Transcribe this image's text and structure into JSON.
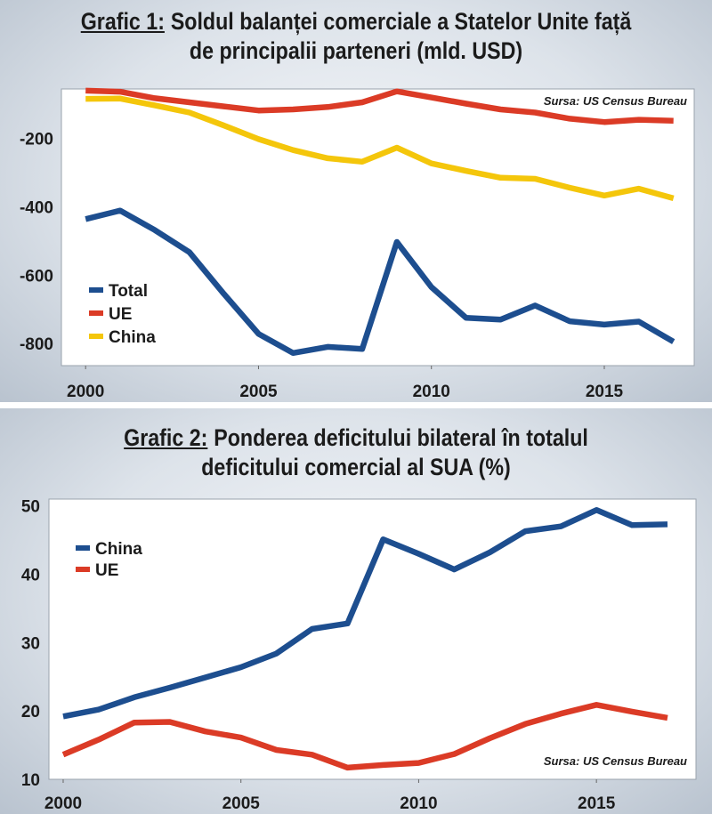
{
  "chart_data": [
    {
      "type": "line",
      "title_prefix": "Grafic 1:",
      "title": "Soldul balanței comerciale a Statelor Unite față de principalii parteneri (mld. USD)",
      "title_lines": [
        "Soldul balanței comerciale a Statelor Unite față",
        "de principalii parteneri (mld. USD)"
      ],
      "source": "Sursa: US Census Bureau",
      "x": [
        2000,
        2001,
        2002,
        2003,
        2004,
        2005,
        2006,
        2007,
        2008,
        2009,
        2010,
        2011,
        2012,
        2013,
        2014,
        2015,
        2016,
        2017
      ],
      "x_ticks": [
        "2000",
        "2005",
        "2010",
        "2015"
      ],
      "y_ticks": [
        "-200",
        "-400",
        "-600",
        "-800"
      ],
      "ylim": [
        -865,
        -55
      ],
      "xlim": [
        1999.3,
        2017.6
      ],
      "legend_position": "bottom-left",
      "grid": false,
      "series": [
        {
          "name": "Total",
          "color": "#1d4e8f",
          "values": [
            -436,
            -411,
            -468,
            -533,
            -655,
            -772,
            -828,
            -810,
            -816,
            -503,
            -635,
            -725,
            -730,
            -689,
            -735,
            -745,
            -736,
            -795
          ]
        },
        {
          "name": "UE",
          "color": "#db3b26",
          "values": [
            -60,
            -63,
            -82,
            -94,
            -106,
            -118,
            -115,
            -108,
            -94,
            -62,
            -80,
            -98,
            -115,
            -124,
            -142,
            -152,
            -145,
            -148
          ]
        },
        {
          "name": "China",
          "color": "#f4c60b",
          "values": [
            -84,
            -83,
            -103,
            -124,
            -162,
            -202,
            -234,
            -258,
            -268,
            -227,
            -273,
            -295,
            -315,
            -318,
            -344,
            -367,
            -347,
            -375
          ]
        }
      ]
    },
    {
      "type": "line",
      "title_prefix": "Grafic 2:",
      "title": "Ponderea deficitului bilateral în totalul deficitului comercial al SUA (%)",
      "title_lines": [
        "Ponderea deficitului bilateral în totalul",
        "deficitului comercial al SUA (%)"
      ],
      "source": "Sursa: US Census Bureau",
      "x": [
        2000,
        2001,
        2002,
        2003,
        2004,
        2005,
        2006,
        2007,
        2008,
        2009,
        2010,
        2011,
        2012,
        2013,
        2014,
        2015,
        2016,
        2017
      ],
      "x_ticks": [
        "2000",
        "2005",
        "2010",
        "2015"
      ],
      "y_ticks": [
        "10",
        "20",
        "30",
        "40",
        "50"
      ],
      "ylim": [
        10,
        51
      ],
      "xlim": [
        1999.6,
        2017.8
      ],
      "legend_position": "top-left",
      "grid": false,
      "series": [
        {
          "name": "China",
          "color": "#1d4e8f",
          "values": [
            19.2,
            20.2,
            22.0,
            23.4,
            24.9,
            26.4,
            28.4,
            32.0,
            32.8,
            45.1,
            43.0,
            40.7,
            43.2,
            46.3,
            47.0,
            49.4,
            47.2,
            47.3
          ]
        },
        {
          "name": "UE",
          "color": "#db3b26",
          "values": [
            13.6,
            15.8,
            18.3,
            18.4,
            17.0,
            16.1,
            14.3,
            13.6,
            11.7,
            12.1,
            12.4,
            13.7,
            16.0,
            18.1,
            19.6,
            20.9,
            19.9,
            19.0
          ]
        }
      ]
    }
  ]
}
